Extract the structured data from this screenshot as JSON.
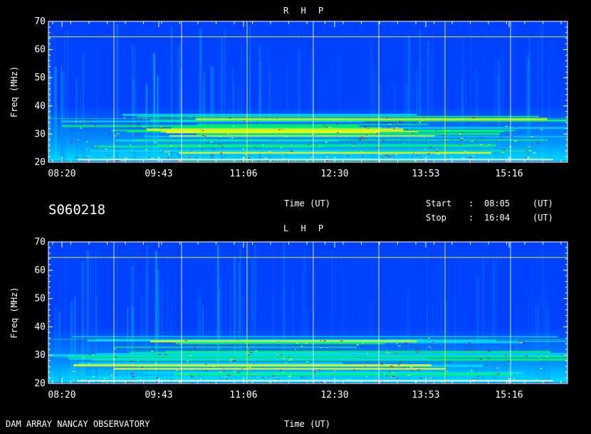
{
  "chart_data": [
    {
      "type": "heatmap",
      "title": "R H P",
      "ylabel": "Freq (MHz)",
      "xlabel": "Time (UT)",
      "ylim": [
        20,
        70
      ],
      "yticks": [
        "20",
        "30",
        "40",
        "50",
        "60",
        "70"
      ],
      "xticks": [
        "08:20",
        "09:43",
        "11:06",
        "12:30",
        "13:53",
        "15:16"
      ],
      "colormap": [
        "#0000c8",
        "#0040ff",
        "#0090ff",
        "#00e0ff",
        "#00ff60",
        "#ffff00",
        "#ff0000",
        "#ffffff"
      ]
    },
    {
      "type": "heatmap",
      "title": "L H P",
      "ylabel": "Freq (MHz)",
      "xlabel": "Time (UT)",
      "ylim": [
        20,
        70
      ],
      "yticks": [
        "20",
        "30",
        "40",
        "50",
        "60",
        "70"
      ],
      "xticks": [
        "08:20",
        "09:43",
        "11:06",
        "12:30",
        "13:53",
        "15:16"
      ],
      "colormap": [
        "#0000c8",
        "#0040ff",
        "#0090ff",
        "#00e0ff",
        "#00ff60",
        "#ffff00",
        "#ff0000",
        "#ffffff"
      ]
    }
  ],
  "info": {
    "observation_id": "S060218",
    "start_label": "Start",
    "start_sep": ":",
    "start_time": "08:05",
    "start_unit": "(UT)",
    "stop_label": "Stop",
    "stop_sep": ":",
    "stop_time": "16:04",
    "stop_unit": "(UT)"
  },
  "footer": {
    "instrument": "DAM ARRAY  NANCAY OBSERVATORY"
  }
}
